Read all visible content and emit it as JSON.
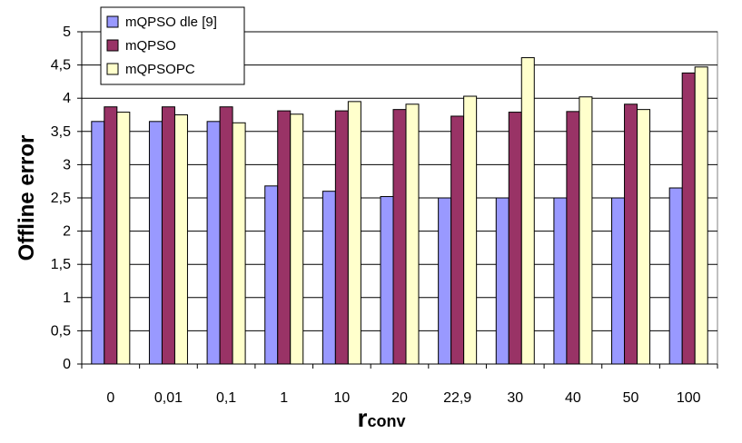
{
  "chart_data": {
    "type": "bar",
    "categories": [
      "0",
      "0,01",
      "0,1",
      "1",
      "10",
      "20",
      "22,9",
      "30",
      "40",
      "50",
      "100"
    ],
    "series": [
      {
        "name": "mQPSO dle [9]",
        "color": "#9999ff",
        "values": [
          3.65,
          3.65,
          3.65,
          2.68,
          2.6,
          2.52,
          2.5,
          2.5,
          2.5,
          2.5,
          2.65
        ]
      },
      {
        "name": "mQPSO",
        "color": "#993366",
        "values": [
          3.87,
          3.87,
          3.87,
          3.81,
          3.81,
          3.83,
          3.73,
          3.79,
          3.8,
          3.91,
          4.38
        ]
      },
      {
        "name": "mQPSOPC",
        "color": "#ffffcc",
        "values": [
          3.79,
          3.75,
          3.63,
          3.76,
          3.95,
          3.91,
          4.03,
          4.61,
          4.02,
          3.83,
          4.47
        ]
      }
    ],
    "y_ticks": [
      "0",
      "0,5",
      "1",
      "1,5",
      "2",
      "2,5",
      "3",
      "3,5",
      "4",
      "4,5",
      "5"
    ],
    "ylabel": "Offline error",
    "xlabel": "r",
    "xlabel_subscript": "conv",
    "ylim": [
      0,
      5
    ],
    "grid": true,
    "legend": "top-left"
  }
}
